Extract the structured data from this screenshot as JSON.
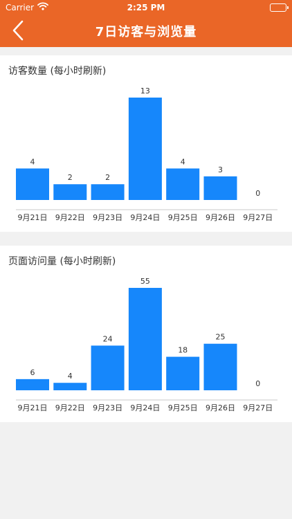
{
  "status_bar": {
    "carrier": "Carrier",
    "time": "2:25 PM",
    "wifi_icon": "wifi-icon",
    "battery_icon": "battery-icon"
  },
  "nav": {
    "title": "7日访客与浏览量",
    "back_icon": "chevron-left-icon"
  },
  "colors": {
    "header": "#ea6627",
    "bar": "#1687fb",
    "background": "#f1f1f1"
  },
  "chart_data": [
    {
      "type": "bar",
      "title": "访客数量 (每小时刷新)",
      "categories": [
        "9月21日",
        "9月22日",
        "9月23日",
        "9月24日",
        "9月25日",
        "9月26日",
        "9月27日"
      ],
      "values": [
        4,
        2,
        2,
        13,
        4,
        3,
        0
      ],
      "xlabel": "",
      "ylabel": "",
      "ylim": [
        0,
        13
      ],
      "grid": false,
      "color": "#1687fb"
    },
    {
      "type": "bar",
      "title": "页面访问量 (每小时刷新)",
      "categories": [
        "9月21日",
        "9月22日",
        "9月23日",
        "9月24日",
        "9月25日",
        "9月26日",
        "9月27日"
      ],
      "values": [
        6,
        4,
        24,
        55,
        18,
        25,
        0
      ],
      "xlabel": "",
      "ylabel": "",
      "ylim": [
        0,
        55
      ],
      "grid": false,
      "color": "#1687fb"
    }
  ]
}
